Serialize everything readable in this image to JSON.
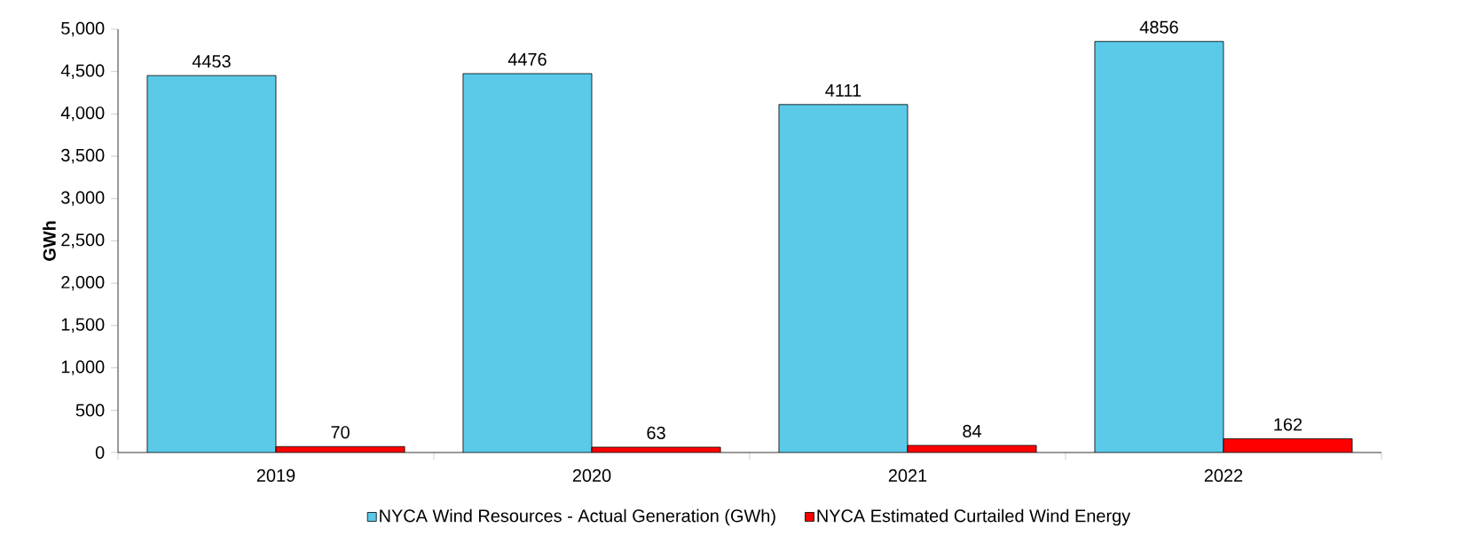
{
  "chart_data": {
    "type": "bar",
    "ylabel": "GWh",
    "categories": [
      "2019",
      "2020",
      "2021",
      "2022"
    ],
    "series": [
      {
        "name": "NYCA Wind Resources - Actual Generation (GWh)",
        "color": "#5bc9e8",
        "values": [
          4453,
          4476,
          4111,
          4856
        ]
      },
      {
        "name": "NYCA Estimated Curtailed Wind Energy",
        "color": "#ff0000",
        "values": [
          70,
          63,
          84,
          162
        ]
      }
    ],
    "ylim": [
      0,
      5000
    ],
    "yticks": [
      0,
      {
        "value": 500,
        "label": "500"
      },
      {
        "value": 1000,
        "label": "1,000"
      },
      {
        "value": 1500,
        "label": "1,500"
      },
      {
        "value": 2000,
        "label": "2,000"
      },
      {
        "value": 2500,
        "label": "2,500"
      },
      {
        "value": 3000,
        "label": "3,000"
      },
      {
        "value": 3500,
        "label": "3,500"
      },
      {
        "value": 4000,
        "label": "4,000"
      },
      {
        "value": 4500,
        "label": "4,500"
      },
      {
        "value": 5000,
        "label": "5,000"
      }
    ],
    "data_labels": true,
    "grid": false,
    "legend": "bottom"
  }
}
